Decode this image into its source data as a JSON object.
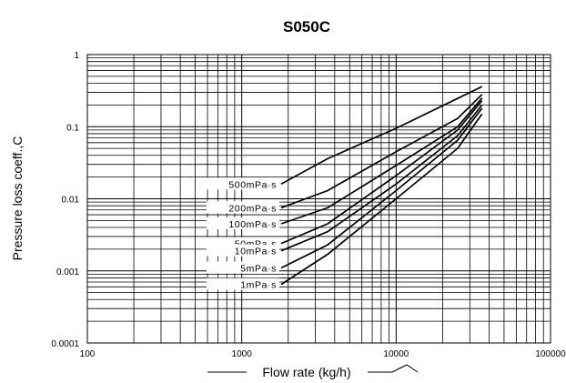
{
  "chart_data": {
    "type": "line",
    "title": "S050C",
    "xlabel": "Flow rate (kg/h)",
    "ylabel": "Pressure loss coeff.,C",
    "x_scale": "log",
    "y_scale": "log",
    "xlim": [
      100,
      100000
    ],
    "ylim": [
      0.0001,
      1
    ],
    "x_ticks": [
      {
        "value": 100,
        "label": "100"
      },
      {
        "value": 1000,
        "label": "1000"
      },
      {
        "value": 10000,
        "label": "10000"
      },
      {
        "value": 100000,
        "label": "100000"
      }
    ],
    "y_ticks": [
      {
        "value": 0.0001,
        "label": "0.0001"
      },
      {
        "value": 0.001,
        "label": "0.001"
      },
      {
        "value": 0.01,
        "label": "0.01"
      },
      {
        "value": 0.1,
        "label": "0.1"
      },
      {
        "value": 1,
        "label": "1"
      }
    ],
    "grid": true,
    "series": [
      {
        "name": "500mPa·s",
        "points": [
          [
            1800,
            0.016
          ],
          [
            3600,
            0.036
          ],
          [
            10000,
            0.095
          ],
          [
            36000,
            0.36
          ]
        ]
      },
      {
        "name": "200mPa·s",
        "points": [
          [
            1800,
            0.0075
          ],
          [
            3600,
            0.013
          ],
          [
            10000,
            0.045
          ],
          [
            25000,
            0.13
          ],
          [
            36000,
            0.28
          ]
        ]
      },
      {
        "name": "100mPa·s",
        "points": [
          [
            1800,
            0.0045
          ],
          [
            3600,
            0.0075
          ],
          [
            10000,
            0.029
          ],
          [
            25000,
            0.1
          ],
          [
            36000,
            0.25
          ]
        ]
      },
      {
        "name": "50mPa·s",
        "points": [
          [
            1800,
            0.0024
          ],
          [
            3600,
            0.0045
          ],
          [
            10000,
            0.021
          ],
          [
            25000,
            0.09
          ],
          [
            36000,
            0.23
          ]
        ]
      },
      {
        "name": "10mPa·s",
        "points": [
          [
            1800,
            0.0019
          ],
          [
            3600,
            0.0035
          ],
          [
            10000,
            0.016
          ],
          [
            25000,
            0.075
          ],
          [
            36000,
            0.2
          ]
        ]
      },
      {
        "name": "5mPa·s",
        "points": [
          [
            1800,
            0.0011
          ],
          [
            3600,
            0.0023
          ],
          [
            10000,
            0.013
          ],
          [
            25000,
            0.065
          ],
          [
            36000,
            0.18
          ]
        ]
      },
      {
        "name": "1mPa·s",
        "points": [
          [
            1800,
            0.00065
          ],
          [
            3600,
            0.0017
          ],
          [
            10000,
            0.01
          ],
          [
            25000,
            0.05
          ],
          [
            36000,
            0.15
          ]
        ]
      }
    ]
  }
}
